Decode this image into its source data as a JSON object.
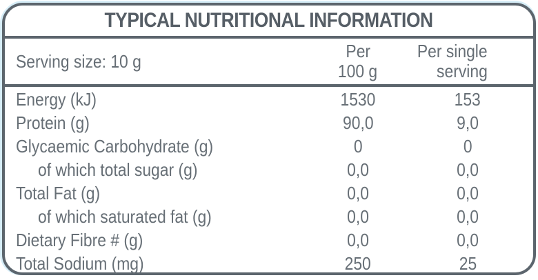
{
  "label": {
    "title": "TYPICAL NUTRITIONAL INFORMATION",
    "serving_size": "Serving size: 10 g",
    "columns": {
      "per_100": {
        "line1": "Per",
        "line2": "100 g"
      },
      "per_serving": {
        "line1": "Per single",
        "line2": "serving"
      }
    },
    "rows": [
      {
        "label": "Energy (kJ)",
        "indent": false,
        "per_100": "1530",
        "per_serving": "153"
      },
      {
        "label": "Protein (g)",
        "indent": false,
        "per_100": "90,0",
        "per_serving": "9,0"
      },
      {
        "label": "Glycaemic Carbohydrate (g)",
        "indent": false,
        "per_100": "0",
        "per_serving": "0"
      },
      {
        "label": "of which total sugar (g)",
        "indent": true,
        "per_100": "0,0",
        "per_serving": "0,0"
      },
      {
        "label": "Total Fat (g)",
        "indent": false,
        "per_100": "0,0",
        "per_serving": "0,0"
      },
      {
        "label": "of which saturated fat (g)",
        "indent": true,
        "per_100": "0,0",
        "per_serving": "0,0"
      },
      {
        "label": "Dietary Fibre # (g)",
        "indent": false,
        "per_100": "0,0",
        "per_serving": "0,0"
      },
      {
        "label": "Total Sodium (mg)",
        "indent": false,
        "per_100": "250",
        "per_serving": "25"
      }
    ],
    "colors": {
      "border": "#5c656d",
      "title_text": "#565e66",
      "body_text": "#676f76",
      "halo": "#d6edf7",
      "background": "#ffffff"
    }
  }
}
